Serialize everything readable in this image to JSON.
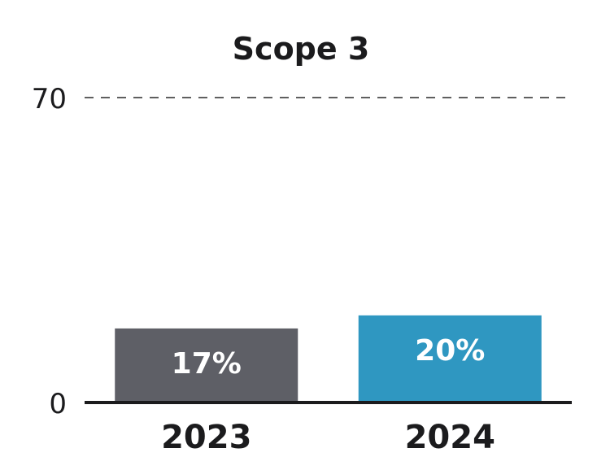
{
  "chart_data": {
    "type": "bar",
    "title": "Scope 3",
    "categories": [
      "2023",
      "2024"
    ],
    "values": [
      17,
      20
    ],
    "data_labels": [
      "17%",
      "20%"
    ],
    "colors": [
      "#5e5f66",
      "#2f97c1"
    ],
    "ylim": [
      0,
      70
    ],
    "yticks": [
      0,
      70
    ],
    "ytick_labels": [
      "0",
      "70"
    ],
    "xlabel": "",
    "ylabel": "",
    "grid": "dashed line at top tick",
    "legend": "none"
  }
}
